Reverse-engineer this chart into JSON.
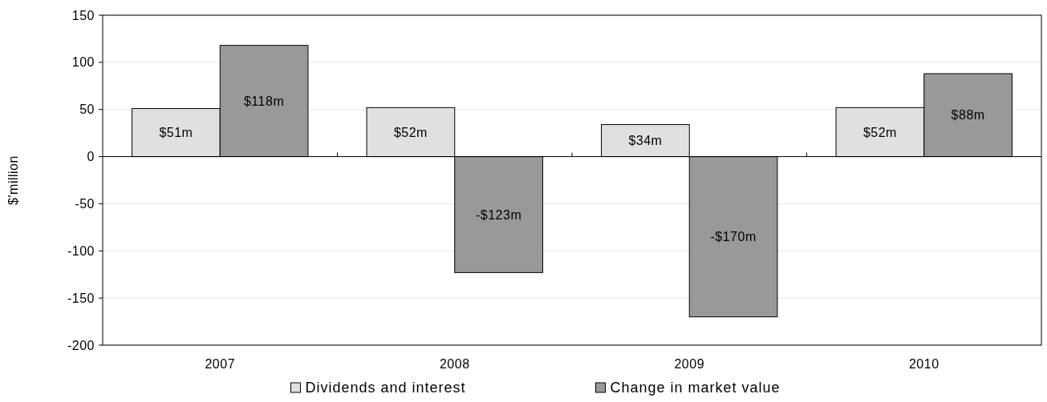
{
  "chart_data": {
    "type": "bar",
    "ylabel": "$'million",
    "categories": [
      "2007",
      "2008",
      "2009",
      "2010"
    ],
    "series": [
      {
        "name": "Dividends and interest",
        "color": "#e0e0e0",
        "values": [
          51,
          52,
          34,
          52
        ],
        "value_labels": [
          "$51m",
          "$52m",
          "$34m",
          "$52m"
        ]
      },
      {
        "name": "Change in market value",
        "color": "#999999",
        "values": [
          118,
          -123,
          -170,
          88
        ],
        "value_labels": [
          "$118m",
          "-$123m",
          "-$170m",
          "$88m"
        ]
      }
    ],
    "ylim": [
      -200,
      150
    ],
    "yticks": [
      -200,
      -150,
      -100,
      -50,
      0,
      50,
      100,
      150
    ],
    "grid": "y",
    "legend": "bottom"
  }
}
